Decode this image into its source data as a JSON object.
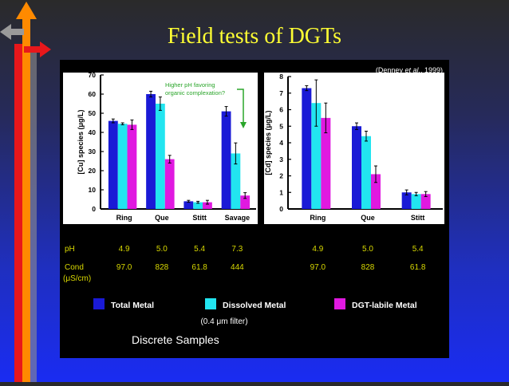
{
  "slide": {
    "title": "Field tests of DGTs"
  },
  "figure": {
    "citation_prefix": "(Denney ",
    "citation_etal": "et al.",
    "citation_suffix": ", 1999)",
    "footer": "Discrete Samples",
    "filter_note": "(0.4 μm filter)"
  },
  "colors": {
    "total": "#1a1ad6",
    "dissolved": "#22e5f0",
    "labile": "#e019e0",
    "ph_text": "#d8d800",
    "cond_text": "#d8d800",
    "background": "#000000",
    "title": "#ffff33"
  },
  "rows": {
    "ph_label": "pH",
    "cond_label": "Cond",
    "cond_unit": "(μS/cm)",
    "left_ph": [
      "4.9",
      "5.0",
      "5.4",
      "7.3"
    ],
    "left_cond": [
      "97.0",
      "828",
      "61.8",
      "444"
    ],
    "right_ph": [
      "4.9",
      "5.0",
      "5.4"
    ],
    "right_cond": [
      "97.0",
      "828",
      "61.8"
    ]
  },
  "chart_data": [
    {
      "type": "bar",
      "ylabel": "[Cu] species (μg/L)",
      "ylim": [
        0,
        70
      ],
      "yticks": [
        0,
        10,
        20,
        30,
        40,
        50,
        60,
        70
      ],
      "categories": [
        "Ring",
        "Que",
        "Stitt",
        "Savage"
      ],
      "series": [
        {
          "name": "Total Metal",
          "values": [
            46,
            60,
            4,
            51
          ],
          "errors": [
            1,
            1.5,
            0.5,
            2.5
          ]
        },
        {
          "name": "Dissolved Metal",
          "values": [
            44.5,
            55,
            3.5,
            29
          ],
          "errors": [
            0.5,
            3.5,
            0.5,
            5.5
          ]
        },
        {
          "name": "DGT-labile Metal",
          "values": [
            44,
            26,
            3.5,
            7
          ],
          "errors": [
            2.5,
            2,
            1,
            1.5
          ]
        }
      ],
      "annotation": [
        "Higher pH favoring",
        "organic complexation?"
      ]
    },
    {
      "type": "bar",
      "ylabel": "[Cd] species (μg/L)",
      "ylim": [
        0,
        8
      ],
      "yticks": [
        0,
        1,
        2,
        3,
        4,
        5,
        6,
        7,
        8
      ],
      "categories": [
        "Ring",
        "Que",
        "Stitt"
      ],
      "series": [
        {
          "name": "Total Metal",
          "values": [
            7.3,
            5.0,
            1.0
          ],
          "errors": [
            0.15,
            0.2,
            0.15
          ]
        },
        {
          "name": "Dissolved Metal",
          "values": [
            6.4,
            4.4,
            0.9
          ],
          "errors": [
            1.4,
            0.3,
            0.1
          ]
        },
        {
          "name": "DGT-labile Metal",
          "values": [
            5.5,
            2.1,
            0.9
          ],
          "errors": [
            0.9,
            0.5,
            0.15
          ]
        }
      ]
    }
  ]
}
